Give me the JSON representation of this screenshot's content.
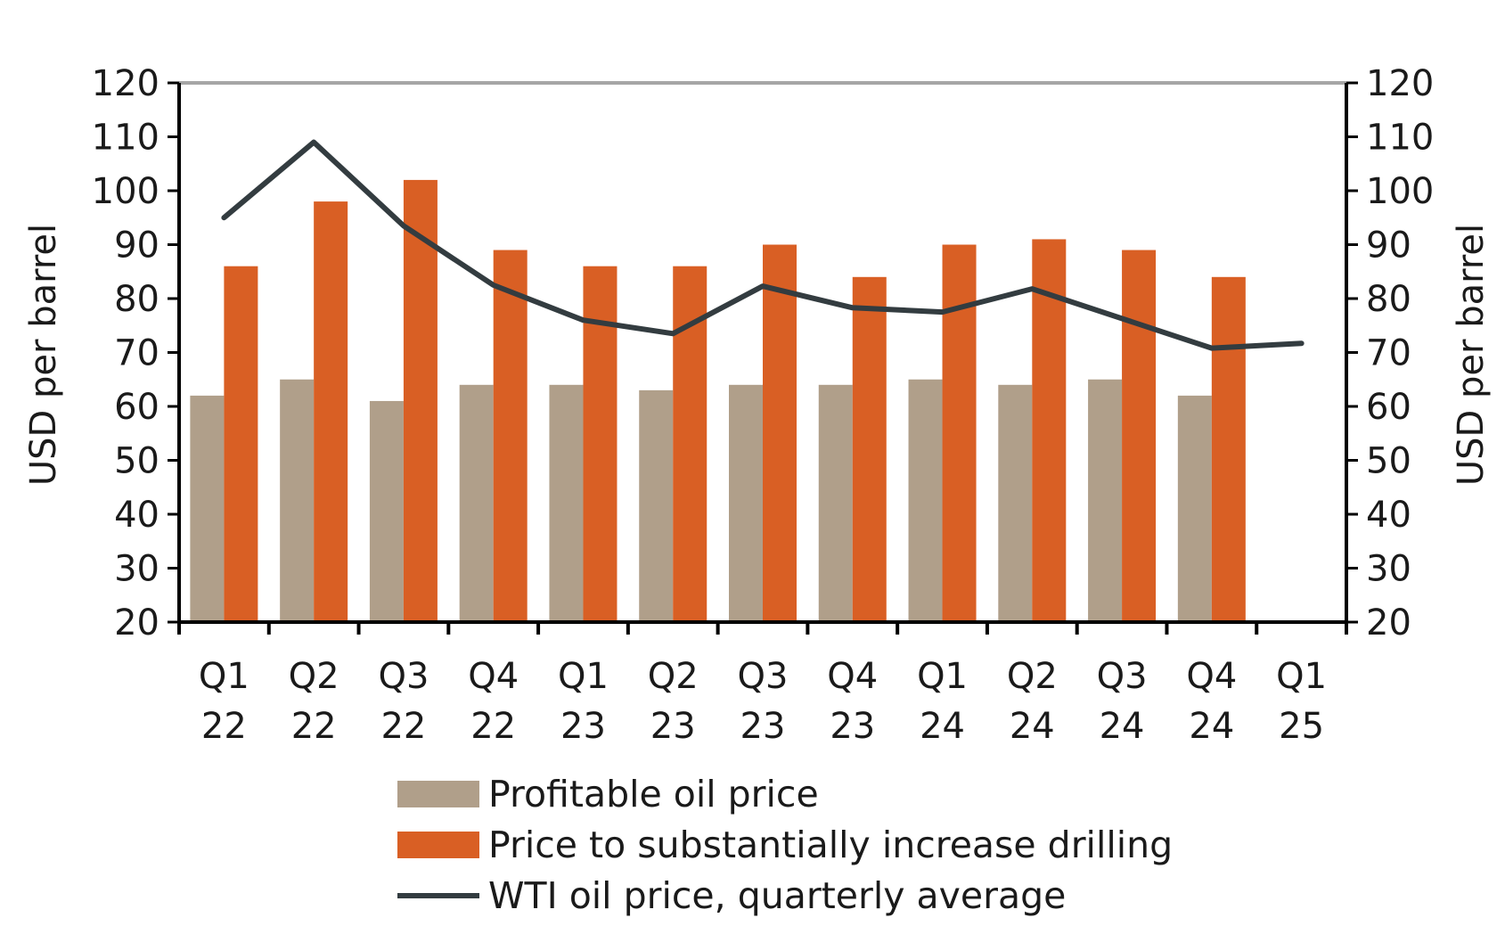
{
  "chart_data": {
    "type": "bar",
    "categories": [
      [
        "Q1",
        "22"
      ],
      [
        "Q2",
        "22"
      ],
      [
        "Q3",
        "22"
      ],
      [
        "Q4",
        "22"
      ],
      [
        "Q1",
        "23"
      ],
      [
        "Q2",
        "23"
      ],
      [
        "Q3",
        "23"
      ],
      [
        "Q4",
        "23"
      ],
      [
        "Q1",
        "24"
      ],
      [
        "Q2",
        "24"
      ],
      [
        "Q3",
        "24"
      ],
      [
        "Q4",
        "24"
      ],
      [
        "Q1",
        "25"
      ]
    ],
    "series": [
      {
        "name": "Profitable oil price",
        "type": "bar",
        "color": "#b09f8a",
        "values": [
          62,
          65,
          61,
          64,
          64,
          63,
          64,
          64,
          65,
          64,
          65,
          62,
          null
        ]
      },
      {
        "name": "Price to substantially increase drilling",
        "type": "bar",
        "color": "#d95f24",
        "values": [
          86,
          98,
          102,
          89,
          86,
          86,
          90,
          84,
          90,
          91,
          89,
          84,
          null
        ]
      },
      {
        "name": "WTI oil price, quarterly average",
        "type": "line",
        "color": "#333c40",
        "values": [
          95,
          109,
          93.5,
          82.5,
          76,
          73.5,
          82.3,
          78.3,
          77.5,
          81.8,
          76.3,
          70.8,
          71.7
        ]
      }
    ],
    "ylabel_left": "USD per barrel",
    "ylabel_right": "USD per barrel",
    "ylim": [
      20,
      120
    ],
    "yticks": [
      20,
      30,
      40,
      50,
      60,
      70,
      80,
      90,
      100,
      110,
      120
    ],
    "grid": false,
    "legend_position": "bottom"
  }
}
